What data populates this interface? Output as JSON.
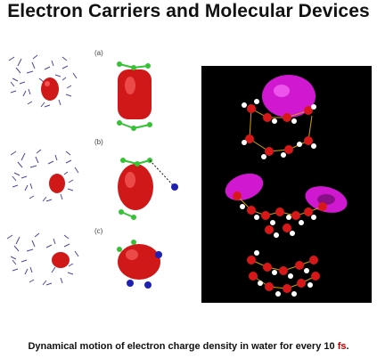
{
  "title": "Electron Carriers and Molecular Devices",
  "panels": {
    "a": "(a)",
    "b": "(b)",
    "c": "(c)"
  },
  "caption": {
    "main": "Dynamical motion of electron charge density in water for every 10 ",
    "unit": "fs",
    "end": "."
  },
  "colors": {
    "electron_density": "#d01818",
    "magenta_density": "#d018d0",
    "water_network": "#2a2a8a",
    "oxygen": "#d81818",
    "hydrogen": "#ffffff",
    "green_atoms": "#33c333",
    "blue_atoms": "#2020b0",
    "panel_background": "#000000"
  }
}
